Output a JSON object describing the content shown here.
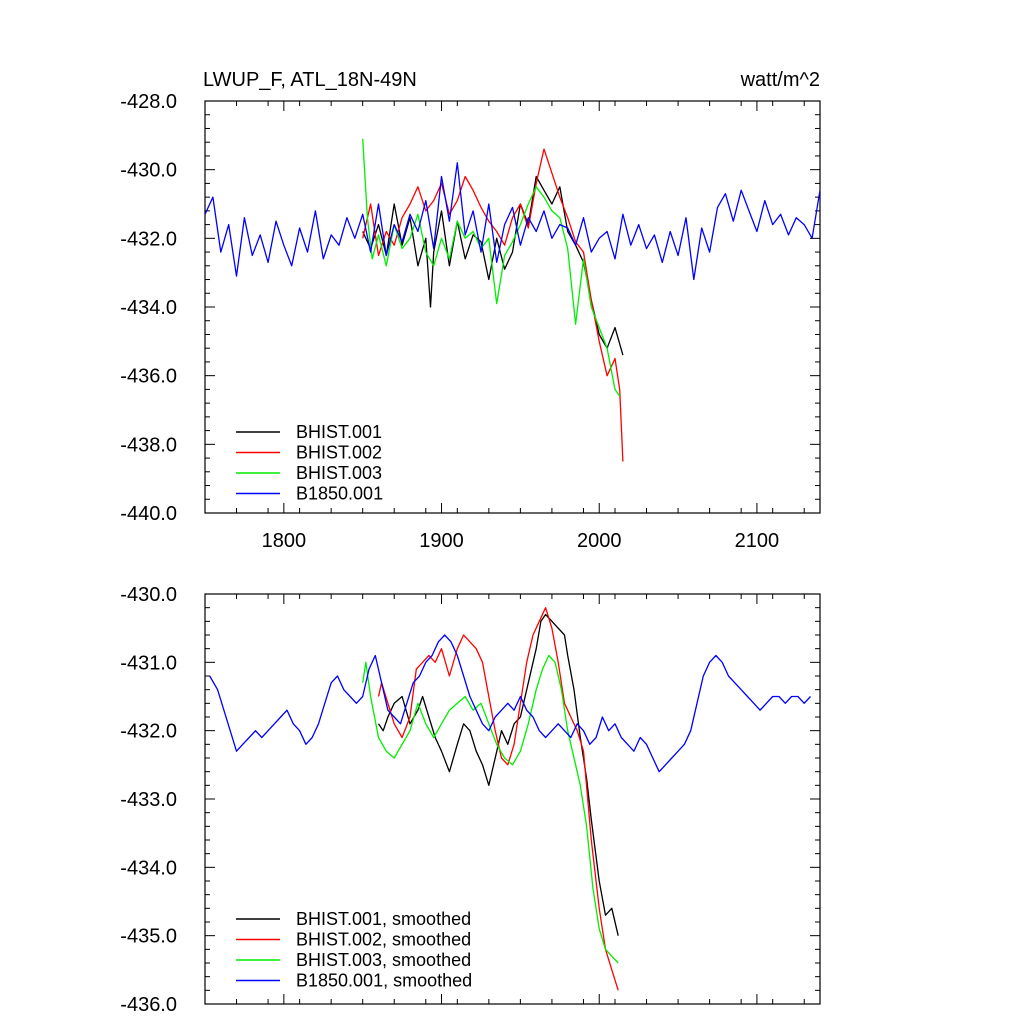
{
  "header": {
    "title": "LWUP_F, ATL_18N-49N",
    "units": "watt/m^2"
  },
  "chart_data": [
    {
      "type": "line",
      "title": "LWUP_F, ATL_18N-49N",
      "units": "watt/m^2",
      "xlim": [
        1750,
        2140
      ],
      "ylim": [
        -440,
        -428
      ],
      "x_ticks": [
        1800,
        1900,
        2000,
        2100
      ],
      "x_tick_labels": [
        "1800",
        "1900",
        "2000",
        "2100"
      ],
      "y_ticks": [
        -440,
        -438,
        -436,
        -434,
        -432,
        -430,
        -428
      ],
      "y_tick_labels": [
        "-440.0",
        "-438.0",
        "-436.0",
        "-434.0",
        "-432.0",
        "-430.0",
        "-428.0"
      ],
      "legend_position": "bottom-left",
      "series": [
        {
          "name": "BHIST.001",
          "color": "#000000",
          "x": [
            1850,
            1855,
            1860,
            1865,
            1870,
            1875,
            1880,
            1885,
            1890,
            1893,
            1895,
            1900,
            1905,
            1910,
            1915,
            1920,
            1925,
            1930,
            1935,
            1940,
            1945,
            1950,
            1955,
            1960,
            1965,
            1970,
            1975,
            1980,
            1985,
            1990,
            1995,
            2000,
            2005,
            2010,
            2015
          ],
          "y": [
            -431.8,
            -432.3,
            -431.6,
            -432.5,
            -431.0,
            -432.2,
            -431.4,
            -432.8,
            -432.0,
            -434.0,
            -432.4,
            -431.2,
            -432.8,
            -431.5,
            -432.6,
            -431.9,
            -432.1,
            -433.2,
            -432.0,
            -432.9,
            -432.4,
            -431.0,
            -431.6,
            -430.2,
            -430.6,
            -431.0,
            -430.5,
            -431.8,
            -432.2,
            -432.7,
            -433.8,
            -434.8,
            -435.2,
            -434.6,
            -435.4
          ]
        },
        {
          "name": "BHIST.002",
          "color": "#ff0000",
          "x": [
            1850,
            1855,
            1860,
            1865,
            1870,
            1875,
            1880,
            1885,
            1890,
            1895,
            1900,
            1905,
            1910,
            1915,
            1920,
            1925,
            1930,
            1935,
            1940,
            1945,
            1950,
            1955,
            1960,
            1965,
            1970,
            1975,
            1980,
            1985,
            1990,
            1995,
            2000,
            2005,
            2010,
            2013,
            2015
          ],
          "y": [
            -432.0,
            -431.0,
            -432.5,
            -431.8,
            -432.2,
            -431.4,
            -431.0,
            -430.5,
            -431.2,
            -430.9,
            -430.4,
            -431.3,
            -430.9,
            -430.2,
            -430.6,
            -431.1,
            -431.5,
            -431.8,
            -432.2,
            -431.4,
            -431.0,
            -431.7,
            -430.4,
            -429.4,
            -430.1,
            -430.8,
            -431.4,
            -432.1,
            -432.4,
            -433.8,
            -435.0,
            -436.0,
            -435.5,
            -436.4,
            -438.5
          ]
        },
        {
          "name": "BHIST.003",
          "color": "#00ee00",
          "x": [
            1850,
            1853,
            1856,
            1860,
            1865,
            1870,
            1875,
            1880,
            1885,
            1890,
            1895,
            1900,
            1905,
            1910,
            1915,
            1920,
            1925,
            1930,
            1935,
            1940,
            1945,
            1950,
            1955,
            1960,
            1965,
            1970,
            1975,
            1980,
            1985,
            1990,
            1995,
            2000,
            2005,
            2010,
            2013
          ],
          "y": [
            -429.1,
            -431.4,
            -432.6,
            -431.9,
            -432.8,
            -431.6,
            -432.3,
            -432.0,
            -431.3,
            -432.4,
            -432.8,
            -432.0,
            -432.6,
            -431.5,
            -432.0,
            -431.8,
            -432.3,
            -432.0,
            -433.9,
            -432.5,
            -432.1,
            -431.6,
            -431.0,
            -430.5,
            -430.8,
            -431.2,
            -431.4,
            -432.3,
            -434.5,
            -432.6,
            -434.0,
            -434.6,
            -435.2,
            -436.4,
            -436.6
          ]
        },
        {
          "name": "B1850.001",
          "color": "#0000ff",
          "x": [
            1750,
            1755,
            1760,
            1765,
            1770,
            1775,
            1780,
            1785,
            1790,
            1795,
            1800,
            1805,
            1810,
            1815,
            1820,
            1825,
            1830,
            1835,
            1840,
            1845,
            1850,
            1855,
            1860,
            1865,
            1870,
            1875,
            1880,
            1885,
            1890,
            1895,
            1900,
            1905,
            1910,
            1915,
            1920,
            1925,
            1930,
            1935,
            1940,
            1945,
            1950,
            1955,
            1960,
            1965,
            1970,
            1975,
            1980,
            1985,
            1990,
            1995,
            2000,
            2005,
            2010,
            2015,
            2020,
            2025,
            2030,
            2035,
            2040,
            2045,
            2050,
            2055,
            2060,
            2065,
            2070,
            2075,
            2080,
            2085,
            2090,
            2095,
            2100,
            2105,
            2110,
            2115,
            2120,
            2125,
            2130,
            2135,
            2140
          ],
          "y": [
            -431.3,
            -430.8,
            -432.4,
            -431.6,
            -433.1,
            -431.4,
            -432.5,
            -431.9,
            -432.7,
            -431.5,
            -432.2,
            -432.8,
            -431.7,
            -432.4,
            -431.2,
            -432.6,
            -431.9,
            -432.2,
            -431.4,
            -432.0,
            -431.3,
            -432.4,
            -431.0,
            -432.5,
            -431.6,
            -432.1,
            -431.3,
            -431.8,
            -430.9,
            -432.3,
            -430.2,
            -431.5,
            -429.8,
            -431.9,
            -431.2,
            -432.4,
            -431.0,
            -432.7,
            -431.6,
            -431.1,
            -432.2,
            -431.4,
            -431.8,
            -431.2,
            -432.0,
            -431.6,
            -431.7,
            -432.2,
            -431.4,
            -432.4,
            -432.0,
            -431.8,
            -432.6,
            -431.3,
            -432.2,
            -431.6,
            -432.3,
            -431.9,
            -432.7,
            -431.8,
            -432.5,
            -431.4,
            -433.2,
            -431.7,
            -432.4,
            -431.1,
            -430.7,
            -431.5,
            -430.6,
            -431.2,
            -431.8,
            -430.9,
            -431.6,
            -431.3,
            -431.9,
            -431.4,
            -431.6,
            -432.0,
            -430.6
          ]
        }
      ]
    },
    {
      "type": "line",
      "xlim": [
        1750,
        2140
      ],
      "ylim": [
        -436,
        -430
      ],
      "x_ticks": [
        1800,
        1900,
        2000,
        2100
      ],
      "y_ticks": [
        -436,
        -435,
        -434,
        -433,
        -432,
        -431,
        -430
      ],
      "y_tick_labels": [
        "-436.0",
        "-435.0",
        "-434.0",
        "-433.0",
        "-432.0",
        "-431.0",
        "-430.0"
      ],
      "legend_position": "bottom-left",
      "series": [
        {
          "name": "BHIST.001, smoothed",
          "color": "#000000",
          "x": [
            1860,
            1863,
            1866,
            1870,
            1875,
            1880,
            1885,
            1888,
            1892,
            1896,
            1900,
            1905,
            1910,
            1914,
            1918,
            1922,
            1926,
            1930,
            1934,
            1938,
            1942,
            1946,
            1950,
            1955,
            1960,
            1963,
            1966,
            1970,
            1974,
            1978,
            1980,
            1984,
            1988,
            1992,
            1995,
            2000,
            2004,
            2008,
            2012
          ],
          "y": [
            -431.9,
            -432.0,
            -431.8,
            -431.6,
            -431.5,
            -431.9,
            -431.7,
            -431.5,
            -431.8,
            -432.1,
            -432.3,
            -432.6,
            -432.2,
            -431.9,
            -432.0,
            -432.3,
            -432.5,
            -432.8,
            -432.4,
            -432.0,
            -432.2,
            -431.9,
            -431.8,
            -431.3,
            -430.8,
            -430.4,
            -430.3,
            -430.4,
            -430.5,
            -430.6,
            -430.9,
            -431.4,
            -432.1,
            -432.7,
            -433.3,
            -434.2,
            -434.7,
            -434.6,
            -435.0
          ]
        },
        {
          "name": "BHIST.002, smoothed",
          "color": "#ff0000",
          "x": [
            1860,
            1862,
            1866,
            1870,
            1875,
            1880,
            1884,
            1888,
            1892,
            1896,
            1900,
            1905,
            1910,
            1914,
            1918,
            1922,
            1926,
            1930,
            1934,
            1938,
            1942,
            1946,
            1950,
            1954,
            1958,
            1962,
            1966,
            1970,
            1974,
            1978,
            1982,
            1986,
            1990,
            1995,
            2000,
            2004,
            2008,
            2012
          ],
          "y": [
            -431.5,
            -431.3,
            -431.6,
            -431.9,
            -432.1,
            -431.8,
            -431.1,
            -431.0,
            -430.9,
            -431.0,
            -430.8,
            -431.2,
            -430.8,
            -430.6,
            -430.7,
            -430.8,
            -431.0,
            -431.5,
            -432.0,
            -432.4,
            -432.5,
            -432.2,
            -431.6,
            -431.0,
            -430.6,
            -430.4,
            -430.2,
            -430.5,
            -431.0,
            -431.6,
            -431.8,
            -432.0,
            -432.3,
            -433.6,
            -434.6,
            -435.2,
            -435.5,
            -435.8
          ]
        },
        {
          "name": "BHIST.003, smoothed",
          "color": "#00ee00",
          "x": [
            1850,
            1852,
            1855,
            1860,
            1865,
            1870,
            1875,
            1880,
            1885,
            1890,
            1895,
            1900,
            1905,
            1910,
            1915,
            1920,
            1925,
            1930,
            1935,
            1940,
            1945,
            1950,
            1955,
            1960,
            1964,
            1968,
            1972,
            1976,
            1980,
            1984,
            1988,
            1992,
            1996,
            2000,
            2004,
            2008,
            2012
          ],
          "y": [
            -431.3,
            -431.0,
            -431.5,
            -432.1,
            -432.3,
            -432.4,
            -432.2,
            -432.0,
            -431.6,
            -431.9,
            -432.1,
            -431.9,
            -431.7,
            -431.6,
            -431.5,
            -431.7,
            -431.6,
            -431.9,
            -432.2,
            -432.4,
            -432.5,
            -432.3,
            -431.9,
            -431.4,
            -431.1,
            -430.9,
            -431.0,
            -431.4,
            -432.0,
            -432.4,
            -432.8,
            -433.4,
            -434.3,
            -434.9,
            -435.2,
            -435.3,
            -435.4
          ]
        },
        {
          "name": "B1850.001, smoothed",
          "color": "#0000ff",
          "x": [
            1753,
            1758,
            1762,
            1766,
            1770,
            1774,
            1778,
            1782,
            1786,
            1790,
            1794,
            1798,
            1802,
            1806,
            1810,
            1814,
            1818,
            1822,
            1826,
            1830,
            1834,
            1838,
            1842,
            1846,
            1850,
            1854,
            1858,
            1862,
            1866,
            1870,
            1874,
            1878,
            1882,
            1886,
            1890,
            1894,
            1898,
            1902,
            1906,
            1910,
            1914,
            1918,
            1922,
            1926,
            1930,
            1934,
            1938,
            1942,
            1946,
            1950,
            1954,
            1958,
            1962,
            1966,
            1970,
            1974,
            1978,
            1982,
            1986,
            1990,
            1994,
            1998,
            2002,
            2006,
            2010,
            2014,
            2018,
            2022,
            2026,
            2030,
            2034,
            2038,
            2042,
            2046,
            2050,
            2054,
            2058,
            2062,
            2066,
            2070,
            2074,
            2078,
            2082,
            2086,
            2090,
            2094,
            2098,
            2102,
            2106,
            2110,
            2114,
            2118,
            2122,
            2126,
            2130,
            2134
          ],
          "y": [
            -431.2,
            -431.4,
            -431.7,
            -432.0,
            -432.3,
            -432.2,
            -432.1,
            -432.0,
            -432.1,
            -432.0,
            -431.9,
            -431.8,
            -431.7,
            -431.9,
            -432.0,
            -432.2,
            -432.1,
            -431.9,
            -431.6,
            -431.3,
            -431.2,
            -431.4,
            -431.5,
            -431.6,
            -431.5,
            -431.1,
            -430.9,
            -431.3,
            -431.7,
            -431.8,
            -431.9,
            -431.6,
            -431.3,
            -431.2,
            -431.0,
            -430.9,
            -430.7,
            -430.6,
            -430.7,
            -430.9,
            -431.2,
            -431.5,
            -431.7,
            -431.9,
            -432.0,
            -431.8,
            -431.7,
            -431.6,
            -431.7,
            -431.5,
            -431.7,
            -431.8,
            -432.0,
            -432.1,
            -432.0,
            -431.9,
            -432.0,
            -432.1,
            -431.9,
            -432.0,
            -432.2,
            -432.1,
            -431.8,
            -432.0,
            -431.9,
            -432.1,
            -432.2,
            -432.3,
            -432.1,
            -432.2,
            -432.4,
            -432.6,
            -432.5,
            -432.4,
            -432.3,
            -432.2,
            -432.0,
            -431.6,
            -431.2,
            -431.0,
            -430.9,
            -431.0,
            -431.2,
            -431.3,
            -431.4,
            -431.5,
            -431.6,
            -431.7,
            -431.6,
            -431.5,
            -431.5,
            -431.6,
            -431.5,
            -431.5,
            -431.6,
            -431.5
          ]
        }
      ]
    }
  ]
}
